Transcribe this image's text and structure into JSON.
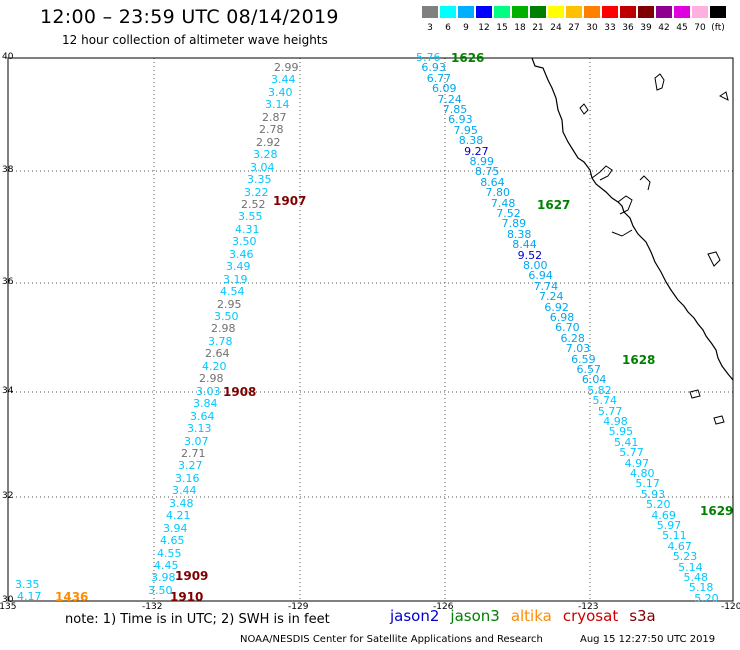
{
  "header": {
    "title": "12:00 – 23:59 UTC 08/14/2019",
    "subtitle": "12 hour collection of altimeter wave heights"
  },
  "color_scale": {
    "colors": [
      "#808080",
      "#00ffff",
      "#00b0ff",
      "#0000ff",
      "#00ff80",
      "#00b000",
      "#008000",
      "#ffff00",
      "#ffc000",
      "#ff8000",
      "#ff0000",
      "#c00000",
      "#800000",
      "#900090",
      "#e000e0",
      "#ffb0e0",
      "#000000"
    ],
    "labels": [
      "3",
      "6",
      "9",
      "12",
      "15",
      "18",
      "21",
      "24",
      "27",
      "30",
      "33",
      "36",
      "39",
      "42",
      "45",
      "70",
      "(ft)"
    ]
  },
  "axes": {
    "lat_labels": [
      "40",
      "38",
      "36",
      "34",
      "32",
      "30"
    ],
    "lon_labels": [
      "-135",
      "-132",
      "-129",
      "-126",
      "-123",
      "-120"
    ]
  },
  "tracks": {
    "track_a": {
      "color": "#00c8ff",
      "values": [
        "2.99",
        "3.44",
        "3.40",
        "3.14",
        "2.87",
        "2.78",
        "2.92",
        "3.28",
        "3.04",
        "3.35",
        "3.22",
        "2.52",
        "3.55",
        "4.31",
        "3.50",
        "3.46",
        "3.49",
        "3.19",
        "4.54",
        "2.95",
        "3.50",
        "2.98",
        "3.78",
        "2.64",
        "4.20",
        "2.98",
        "3.03",
        "3.84",
        "3.64",
        "3.13",
        "3.07",
        "2.71",
        "3.27",
        "3.16",
        "3.44",
        "3.48",
        "4.21",
        "3.94",
        "4.65",
        "4.55",
        "4.45",
        "3.98",
        "3.50"
      ]
    },
    "track_b": {
      "values": [
        "5.76",
        "6.93",
        "6.77",
        "6.09",
        "7.24",
        "7.85",
        "6.93",
        "7.95",
        "8.38",
        "9.27",
        "8.99",
        "8.75",
        "8.64",
        "7.80",
        "7.48",
        "7.52",
        "7.89",
        "8.38",
        "8.44",
        "9.52",
        "8.00",
        "6.94",
        "7.74",
        "7.24",
        "6.92",
        "6.98",
        "6.70",
        "6.28",
        "7.03",
        "6.59",
        "6.57",
        "6.04",
        "5.82",
        "5.74",
        "5.77",
        "4.98",
        "5.95",
        "5.41",
        "5.77",
        "4.97",
        "4.80",
        "5.17",
        "5.93",
        "5.20",
        "4.69",
        "5.97",
        "5.11",
        "4.67",
        "5.23",
        "5.14",
        "5.48",
        "5.18",
        "5.20"
      ]
    },
    "track_c": {
      "values": [
        "3.35",
        "4.17"
      ]
    }
  },
  "time_labels": {
    "t1626": "1626",
    "t1627": "1627",
    "t1628": "1628",
    "t1629": "1629",
    "t1907": "1907",
    "t1908": "1908",
    "t1909": "1909",
    "t1910": "1910",
    "t1436": "1436"
  },
  "note": "note:  1) Time is in UTC;  2) SWH is in feet",
  "satellites": [
    {
      "name": "jason2",
      "color": "#0000cc"
    },
    {
      "name": "jason3",
      "color": "#008000"
    },
    {
      "name": "altika",
      "color": "#ff8c00"
    },
    {
      "name": "cryosat",
      "color": "#cc0000"
    },
    {
      "name": "s3a",
      "color": "#800000"
    }
  ],
  "footer": {
    "credit": "NOAA/NESDIS Center for Satellite Applications and Research",
    "timestamp": "Aug 15 12:27:50 UTC 2019"
  }
}
